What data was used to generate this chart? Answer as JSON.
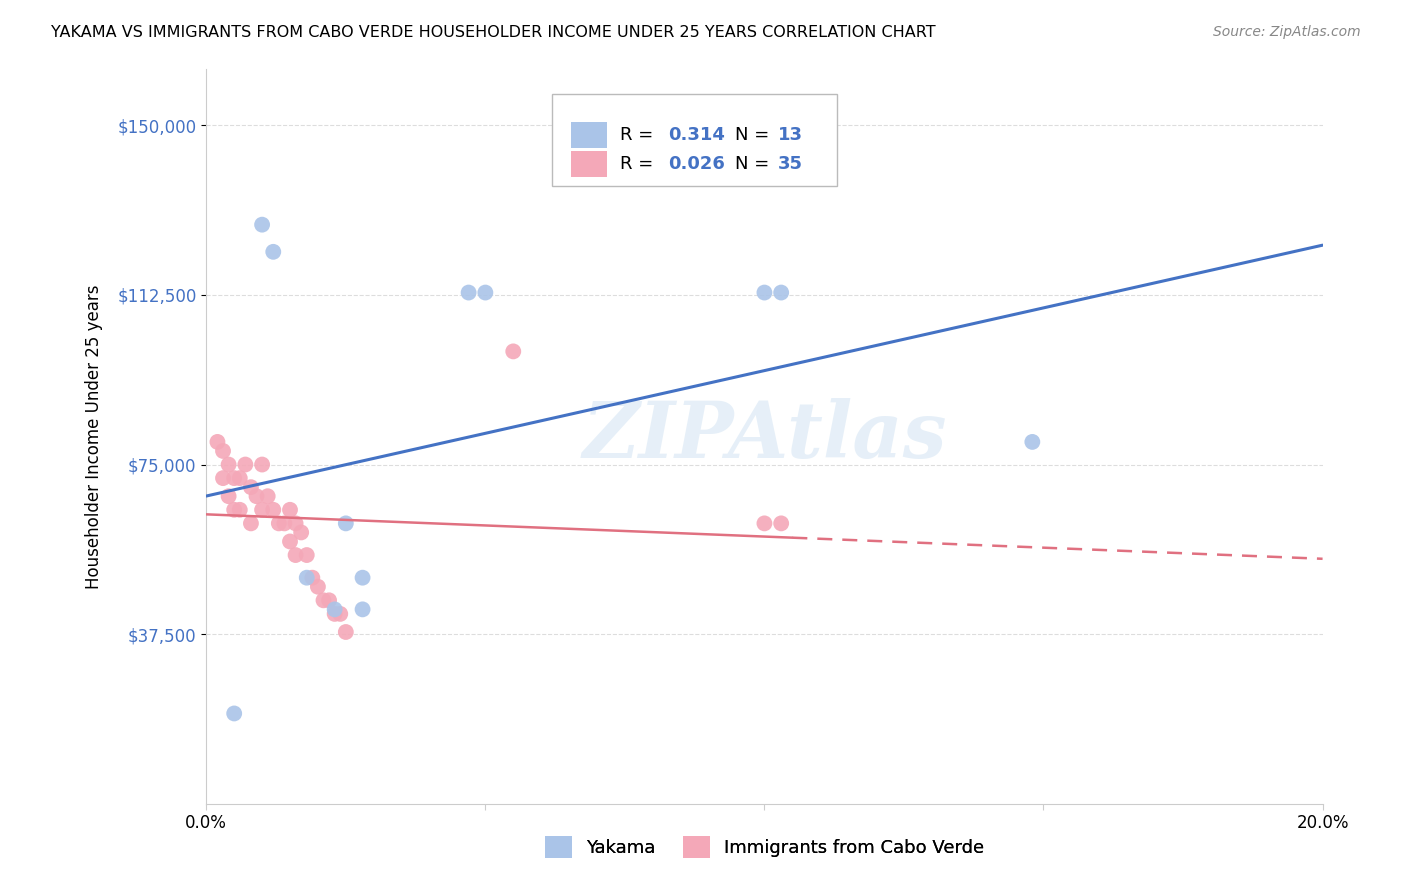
{
  "title": "YAKAMA VS IMMIGRANTS FROM CABO VERDE HOUSEHOLDER INCOME UNDER 25 YEARS CORRELATION CHART",
  "source": "Source: ZipAtlas.com",
  "ylabel_label": "Householder Income Under 25 years",
  "x_min": 0.0,
  "x_max": 0.2,
  "y_min": 0,
  "y_max": 162500,
  "y_ticks": [
    37500,
    75000,
    112500,
    150000
  ],
  "y_tick_labels": [
    "$37,500",
    "$75,000",
    "$112,500",
    "$150,000"
  ],
  "x_ticks": [
    0.0,
    0.05,
    0.1,
    0.15,
    0.2
  ],
  "x_tick_labels": [
    "0.0%",
    "",
    "",
    "",
    "20.0%"
  ],
  "background_color": "#ffffff",
  "grid_color": "#dddddd",
  "yakama_color": "#aac4e8",
  "cabo_verde_color": "#f4a8b8",
  "yakama_line_color": "#4472c4",
  "cabo_verde_line_color": "#e07080",
  "watermark": "ZIPAtlas",
  "yakama_points_x": [
    0.01,
    0.012,
    0.045,
    0.048,
    0.1,
    0.102,
    0.148,
    0.03,
    0.028,
    0.024,
    0.024,
    0.018,
    0.005
  ],
  "yakama_points_y": [
    128000,
    122000,
    113000,
    113000,
    113000,
    113000,
    80000,
    62000,
    50000,
    50000,
    43000,
    43000,
    20000
  ],
  "cabo_verde_points_x": [
    0.002,
    0.003,
    0.003,
    0.004,
    0.004,
    0.005,
    0.005,
    0.006,
    0.006,
    0.007,
    0.008,
    0.008,
    0.009,
    0.01,
    0.01,
    0.011,
    0.012,
    0.013,
    0.014,
    0.015,
    0.015,
    0.016,
    0.016,
    0.017,
    0.018,
    0.019,
    0.02,
    0.021,
    0.022,
    0.023,
    0.1,
    0.102,
    0.055,
    0.024,
    0.025
  ],
  "cabo_verde_points_y": [
    80000,
    78000,
    72000,
    75000,
    68000,
    72000,
    65000,
    72000,
    65000,
    75000,
    70000,
    62000,
    68000,
    75000,
    65000,
    68000,
    65000,
    62000,
    62000,
    65000,
    58000,
    62000,
    55000,
    60000,
    55000,
    50000,
    48000,
    45000,
    45000,
    42000,
    62000,
    62000,
    100000,
    42000,
    38000
  ]
}
